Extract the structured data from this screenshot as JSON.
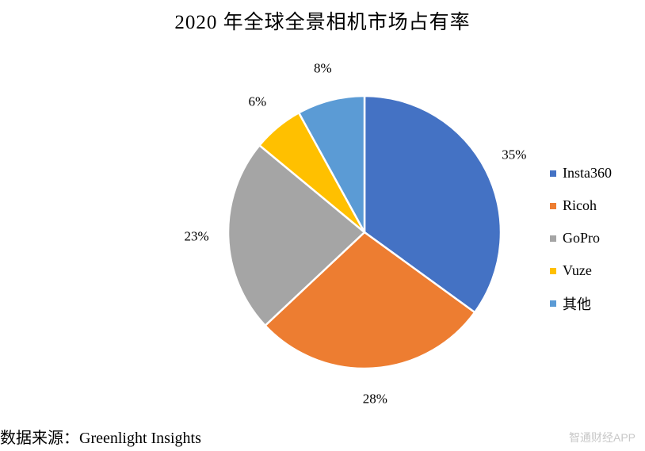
{
  "chart_data": {
    "type": "pie",
    "title": "2020 年全球全景相机市场占有率",
    "categories": [
      "Insta360",
      "Ricoh",
      "GoPro",
      "Vuze",
      "其他"
    ],
    "values": [
      35,
      28,
      23,
      6,
      8
    ],
    "value_labels": [
      "35%",
      "28%",
      "23%",
      "6%",
      "8%"
    ],
    "colors": [
      "#4472C4",
      "#ED7D31",
      "#A5A5A5",
      "#FFC000",
      "#5B9BD5"
    ],
    "legend_position": "right",
    "start_angle": "12 o'clock",
    "direction": "clockwise"
  },
  "source": "数据来源：Greenlight Insights",
  "watermark": "智通财经APP"
}
